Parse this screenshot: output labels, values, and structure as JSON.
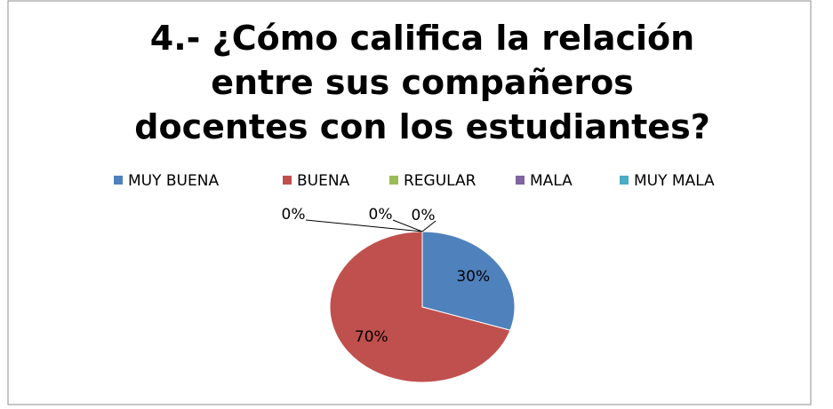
{
  "chart_data": {
    "type": "pie",
    "title": "4.- ¿Cómo califica la relación entre sus compañeros docentes con los estudiantes?",
    "categories": [
      "MUY BUENA",
      "BUENA",
      "REGULAR",
      "MALA",
      "MUY MALA"
    ],
    "values": [
      30,
      70,
      0,
      0,
      0
    ],
    "value_labels": [
      "30%",
      "70%",
      "0%",
      "0%",
      "0%"
    ],
    "colors": [
      "#4f81bd",
      "#c0504d",
      "#9bbb59",
      "#8064a2",
      "#4bacc6"
    ],
    "legend": "top"
  }
}
